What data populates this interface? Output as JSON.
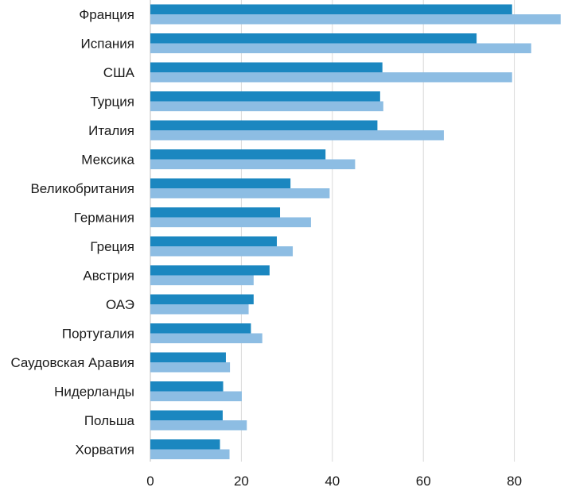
{
  "chart_data": {
    "type": "bar",
    "orientation": "horizontal",
    "title": "",
    "xlabel": "",
    "ylabel": "",
    "xlim": [
      0,
      90
    ],
    "x_ticks": [
      0,
      20,
      40,
      60,
      80
    ],
    "grid": true,
    "legend": "none",
    "categories": [
      "Франция",
      "Испания",
      "США",
      "Турция",
      "Италия",
      "Мексика",
      "Великобритания",
      "Германия",
      "Греция",
      "Австрия",
      "ОАЭ",
      "Португалия",
      "Саудовская Аравия",
      "Нидерланды",
      "Польша",
      "Хорватия"
    ],
    "series": [
      {
        "color": "#1b87c0",
        "values": [
          79.5,
          71.7,
          51.0,
          50.5,
          49.9,
          38.5,
          30.8,
          28.5,
          27.8,
          26.2,
          22.7,
          22.1,
          16.6,
          16.0,
          15.9,
          15.3
        ]
      },
      {
        "color": "#8dbde3",
        "values": [
          90.9,
          83.7,
          79.5,
          51.2,
          64.5,
          45.0,
          39.4,
          35.3,
          31.3,
          22.7,
          21.6,
          24.6,
          17.5,
          20.1,
          21.2,
          17.4
        ]
      }
    ],
    "colors": {
      "grid": "#d9d9d9",
      "axis": "#bfbfbf",
      "text": "#1a1a1a"
    }
  }
}
